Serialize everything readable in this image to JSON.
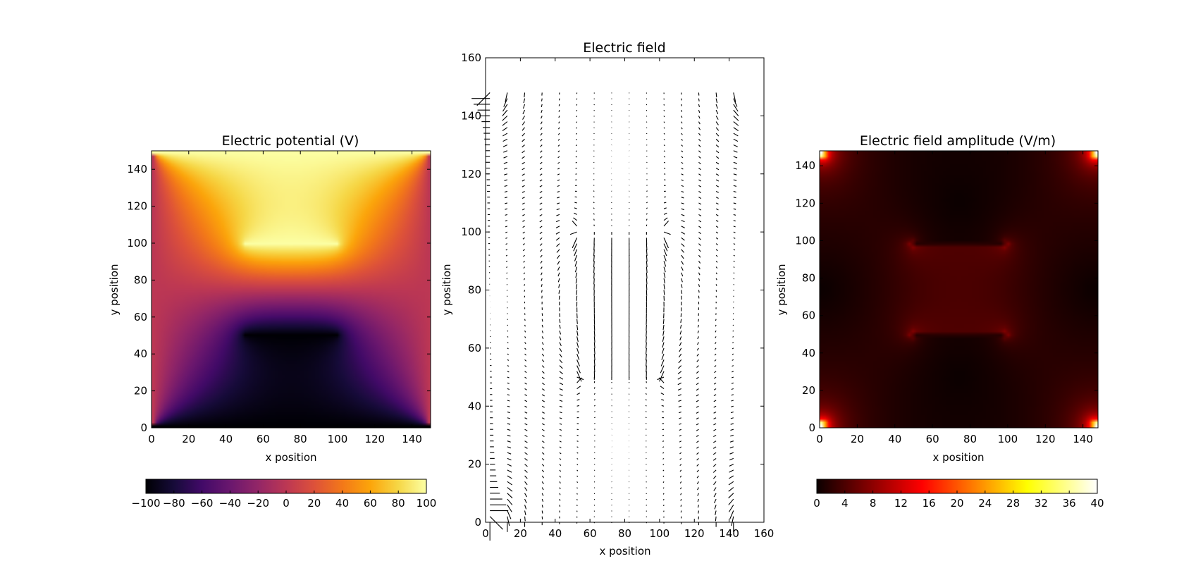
{
  "chart_data": [
    {
      "type": "heatmap",
      "title": "Electric potential (V)",
      "xlabel": "x position",
      "ylabel": "y position",
      "xlim": [
        0,
        150
      ],
      "ylim": [
        0,
        150
      ],
      "xticks": [
        "0",
        "20",
        "40",
        "60",
        "80",
        "100",
        "120",
        "140"
      ],
      "yticks": [
        "0",
        "20",
        "40",
        "60",
        "80",
        "100",
        "120",
        "140"
      ],
      "colormap": "inferno",
      "colorbar": {
        "orientation": "horizontal",
        "range": [
          -100,
          100
        ],
        "ticks": [
          "−100",
          "−80",
          "−60",
          "−40",
          "−20",
          "0",
          "20",
          "40",
          "60",
          "80",
          "100"
        ]
      },
      "boundary_conditions": {
        "top_edge": 100,
        "bottom_edge": -100,
        "left_edge": 0,
        "right_edge": 0,
        "upper_plate": {
          "x_range": [
            50,
            100
          ],
          "y": 100,
          "value": 100
        },
        "lower_plate": {
          "x_range": [
            50,
            100
          ],
          "y": 50,
          "value": -100
        }
      }
    },
    {
      "type": "quiver",
      "title": "Electric field",
      "xlabel": "x position",
      "ylabel": "y position",
      "xlim": [
        0,
        160
      ],
      "ylim": [
        0,
        160
      ],
      "xticks": [
        "0",
        "20",
        "40",
        "60",
        "80",
        "100",
        "120",
        "140",
        "160"
      ],
      "yticks": [
        "0",
        "20",
        "40",
        "60",
        "80",
        "100",
        "120",
        "140",
        "160"
      ],
      "columns_x": [
        0,
        10,
        20,
        30,
        40,
        50,
        60,
        70,
        80,
        90,
        100,
        110,
        120,
        130,
        140
      ],
      "arrow_y_range": [
        0,
        148
      ],
      "color": "#000000"
    },
    {
      "type": "heatmap",
      "title": "Electric field amplitude (V/m)",
      "xlabel": "x position",
      "ylabel": "y position",
      "xlim": [
        0,
        148
      ],
      "ylim": [
        0,
        148
      ],
      "xticks": [
        "0",
        "20",
        "40",
        "60",
        "80",
        "100",
        "120",
        "140"
      ],
      "yticks": [
        "0",
        "20",
        "40",
        "60",
        "80",
        "100",
        "120",
        "140"
      ],
      "colormap": "hot",
      "colorbar": {
        "orientation": "horizontal",
        "range": [
          0,
          40
        ],
        "ticks": [
          "0",
          "4",
          "8",
          "12",
          "16",
          "20",
          "24",
          "28",
          "32",
          "36",
          "40"
        ]
      }
    }
  ]
}
